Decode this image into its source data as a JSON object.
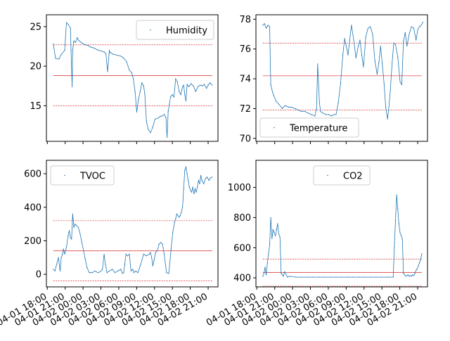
{
  "figure": {
    "background": "#ffffff",
    "line_color": "#1f77b4",
    "reference_line_color": "#d62728",
    "x_tick_labels": [
      "04-01 18:00",
      "04-01 21:00",
      "04-02 00:00",
      "04-02 03:00",
      "04-02 06:00",
      "04-02 09:00",
      "04-02 12:00",
      "04-02 15:00",
      "04-02 18:00",
      "04-02 21:00"
    ]
  },
  "chart_data": [
    {
      "type": "line",
      "legend_label": "Humidity",
      "legend_position": "upper right",
      "ylim": [
        10.5,
        26.5
      ],
      "yticks": [
        15,
        20,
        25
      ],
      "xlim": [
        0,
        30
      ],
      "show_x_tick_labels": false,
      "reference_lines": [
        22.7,
        18.8,
        15.0
      ],
      "x": [
        1.2,
        1.6,
        2.2,
        2.6,
        3.2,
        3.5,
        3.8,
        4.2,
        4.3,
        4.5,
        4.6,
        4.8,
        5.1,
        5.4,
        5.6,
        5.9,
        6.3,
        6.8,
        7.3,
        7.8,
        8.3,
        8.8,
        9.2,
        9.7,
        10.1,
        10.4,
        10.7,
        11,
        11.1,
        11.3,
        11.7,
        12.3,
        12.9,
        13.4,
        14,
        14.5,
        14.9,
        15.2,
        15.5,
        15.8,
        16.1,
        16.4,
        16.7,
        17,
        17.2,
        17.5,
        17.8,
        18.2,
        18.6,
        19,
        19.4,
        19.8,
        20.2,
        20.6,
        20.9,
        21.1,
        21.3,
        21.5,
        21.7,
        22,
        22.3,
        22.6,
        22.9,
        23.2,
        23.5,
        23.8,
        24,
        24.2,
        24.4,
        24.6,
        24.9,
        25.3,
        25.7,
        26.1,
        26.5,
        26.9,
        27.3,
        27.6,
        28,
        28.3,
        28.6,
        29
      ],
      "y": [
        22.8,
        21.0,
        20.9,
        21.5,
        22.0,
        25.5,
        25.3,
        24.8,
        22.0,
        17.4,
        22.1,
        23.2,
        23.0,
        23.6,
        23.3,
        23.1,
        22.9,
        22.7,
        22.6,
        22.4,
        22.3,
        22.1,
        22.0,
        21.9,
        21.8,
        21.6,
        19.3,
        22.0,
        21.7,
        21.7,
        21.5,
        21.4,
        21.3,
        21.1,
        20.6,
        19.5,
        19.2,
        18.4,
        16.8,
        14.2,
        15.8,
        16.8,
        17.9,
        17.5,
        16.5,
        13.0,
        12.0,
        11.6,
        12.3,
        13.3,
        13.4,
        13.6,
        13.7,
        13.9,
        13.5,
        11.0,
        14.3,
        15.2,
        16.1,
        16.4,
        16.1,
        18.4,
        18.0,
        16.8,
        16.4,
        17.4,
        17.6,
        16.4,
        15.6,
        17.7,
        17.4,
        17.8,
        17.5,
        16.8,
        17.4,
        17.6,
        17.5,
        17.7,
        17.2,
        17.6,
        17.9,
        17.6
      ]
    },
    {
      "type": "line",
      "legend_label": "Temperature",
      "legend_position": "lower left",
      "ylim": [
        69.8,
        78.3
      ],
      "yticks": [
        70,
        72,
        74,
        76,
        78
      ],
      "xlim": [
        0,
        30
      ],
      "show_x_tick_labels": false,
      "reference_lines": [
        76.4,
        74.2,
        71.9
      ],
      "x": [
        1.2,
        1.5,
        1.8,
        2.1,
        2.4,
        2.6,
        2.9,
        3.1,
        3.5,
        4,
        4.6,
        5.1,
        5.7,
        6.2,
        6.8,
        7.4,
        8,
        8.6,
        9.1,
        9.7,
        10.3,
        10.6,
        10.8,
        11.1,
        11.3,
        11.7,
        12.2,
        12.7,
        13.2,
        13.6,
        14,
        14.4,
        14.8,
        15.2,
        15.5,
        15.8,
        16.1,
        16.4,
        16.7,
        17.1,
        17.5,
        17.9,
        18.2,
        18.5,
        18.8,
        19.2,
        19.6,
        20,
        20.4,
        20.8,
        21.2,
        21.5,
        21.8,
        22.1,
        22.4,
        22.7,
        23,
        23.2,
        23.5,
        23.8,
        24.1,
        24.4,
        24.8,
        25.2,
        25.5,
        25.8,
        26.1,
        26.4,
        26.8,
        27.2,
        27.6,
        28,
        28.3,
        28.6,
        28.9,
        29.2
      ],
      "y": [
        77.6,
        77.7,
        77.4,
        77.6,
        77.5,
        73.6,
        73.1,
        72.9,
        72.5,
        72.3,
        72.0,
        72.2,
        72.1,
        72.1,
        72.0,
        71.9,
        71.8,
        71.8,
        71.7,
        71.6,
        71.5,
        72.0,
        75.0,
        72.4,
        71.8,
        71.7,
        71.6,
        71.6,
        71.5,
        71.6,
        71.6,
        72.4,
        73.7,
        75.6,
        76.7,
        76.2,
        75.6,
        76.6,
        77.6,
        76.6,
        75.4,
        76.2,
        76.6,
        75.6,
        74.8,
        76.8,
        77.4,
        77.5,
        77.0,
        75.2,
        74.3,
        75.1,
        76.2,
        75.0,
        73.7,
        72.1,
        71.3,
        71.9,
        73.2,
        75.0,
        76.4,
        76.3,
        75.5,
        73.8,
        73.6,
        76.5,
        77.1,
        76.2,
        77.0,
        77.5,
        77.4,
        76.6,
        77.3,
        77.5,
        77.6,
        77.8
      ]
    },
    {
      "type": "line",
      "legend_label": "TVOC",
      "legend_position": "upper left",
      "ylim": [
        -75,
        680
      ],
      "yticks": [
        0,
        200,
        400,
        600
      ],
      "xlim": [
        0,
        30
      ],
      "show_x_tick_labels": true,
      "reference_lines": [
        320,
        140,
        -40
      ],
      "x": [
        1.2,
        1.5,
        1.8,
        2.1,
        2.4,
        2.6,
        2.8,
        3.0,
        3.2,
        3.5,
        3.8,
        4,
        4.2,
        4.4,
        4.6,
        4.8,
        5,
        5.3,
        5.6,
        5.9,
        6.2,
        6.5,
        6.8,
        7.1,
        7.5,
        8,
        8.5,
        9,
        9.4,
        9.8,
        10.1,
        10.3,
        10.6,
        11,
        11.5,
        12,
        12.5,
        13,
        13.3,
        13.5,
        13.7,
        13.9,
        14.2,
        14.5,
        14.8,
        15.1,
        15.3,
        15.6,
        16,
        16.5,
        17,
        17.5,
        18,
        18.2,
        18.4,
        18.6,
        18.8,
        19.1,
        19.4,
        19.7,
        20,
        20.3,
        20.6,
        21,
        21.4,
        21.8,
        22.1,
        22.4,
        22.6,
        22.8,
        23,
        23.2,
        23.4,
        23.6,
        23.8,
        24,
        24.2,
        24.4,
        24.6,
        24.8,
        25,
        25.2,
        25.4,
        25.6,
        25.8,
        26,
        26.2,
        26.4,
        26.6,
        26.8,
        27,
        27.2,
        27.5,
        27.8,
        28.1,
        28.4,
        28.7,
        29
      ],
      "y": [
        30,
        20,
        60,
        100,
        20,
        100,
        120,
        150,
        120,
        160,
        230,
        260,
        220,
        210,
        360,
        280,
        300,
        290,
        280,
        240,
        190,
        140,
        90,
        40,
        10,
        10,
        20,
        10,
        15,
        30,
        120,
        60,
        10,
        20,
        30,
        10,
        20,
        30,
        5,
        10,
        60,
        120,
        110,
        120,
        20,
        30,
        10,
        20,
        10,
        60,
        120,
        110,
        120,
        130,
        100,
        50,
        80,
        130,
        140,
        180,
        190,
        180,
        120,
        10,
        5,
        150,
        250,
        310,
        330,
        360,
        350,
        340,
        350,
        370,
        400,
        510,
        620,
        640,
        600,
        560,
        520,
        500,
        490,
        520,
        480,
        510,
        490,
        520,
        560,
        540,
        590,
        560,
        540,
        570,
        580,
        560,
        575,
        580
      ]
    },
    {
      "type": "line",
      "legend_label": "CO2",
      "legend_position": "upper center",
      "ylim": [
        340,
        1180
      ],
      "yticks": [
        400,
        600,
        800,
        1000
      ],
      "xlim": [
        0,
        30
      ],
      "show_x_tick_labels": true,
      "reference_lines": [
        525,
        435,
        345
      ],
      "x": [
        1.2,
        1.4,
        1.6,
        1.8,
        2.0,
        2.2,
        2.4,
        2.6,
        2.8,
        3.0,
        3.2,
        3.4,
        3.6,
        3.8,
        4.0,
        4.2,
        4.4,
        4.6,
        4.8,
        5.0,
        5.5,
        6.0,
        7.0,
        8.0,
        9.0,
        10.0,
        11.0,
        12.0,
        13.0,
        14.0,
        15.0,
        16.0,
        17.0,
        18.0,
        19.0,
        20.0,
        21.0,
        22.0,
        23.0,
        24.0,
        24.2,
        24.4,
        24.6,
        24.8,
        25.0,
        25.2,
        25.4,
        25.6,
        25.8,
        26.0,
        26.2,
        26.4,
        26.6,
        26.8,
        27.0,
        27.2,
        27.4,
        27.6,
        27.8,
        28.0,
        28.2,
        28.4,
        28.6,
        28.8,
        29.0
      ],
      "y": [
        410,
        430,
        470,
        420,
        500,
        560,
        620,
        800,
        660,
        720,
        700,
        680,
        720,
        760,
        690,
        670,
        430,
        420,
        410,
        440,
        405,
        410,
        405,
        405,
        405,
        405,
        405,
        405,
        405,
        405,
        405,
        405,
        405,
        405,
        405,
        405,
        405,
        405,
        405,
        405,
        600,
        780,
        950,
        860,
        760,
        700,
        680,
        660,
        430,
        420,
        410,
        415,
        420,
        410,
        415,
        410,
        420,
        415,
        430,
        450,
        460,
        480,
        500,
        520,
        560
      ]
    }
  ]
}
